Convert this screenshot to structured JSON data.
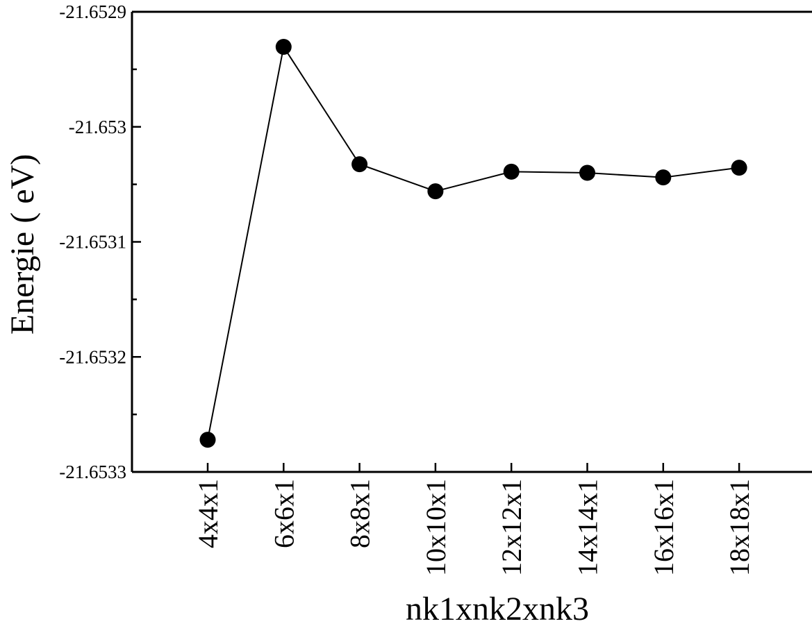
{
  "chart_data": {
    "type": "line",
    "title": "",
    "xlabel": "nk1xnk2xnk3",
    "ylabel": "Energie ( eV)",
    "categories": [
      "4x4x1",
      "6x6x1",
      "8x8x1",
      "10x10x1",
      "12x12x1",
      "14x14x1",
      "16x16x1",
      "18x18x1"
    ],
    "series": [
      {
        "values": [
          -21.653272,
          -21.6529305,
          -21.6530325,
          -21.653056,
          -21.653039,
          -21.65304,
          -21.653044,
          -21.6530355
        ]
      }
    ],
    "ylim": [
      -21.6533,
      -21.6529
    ],
    "yticks": [
      -21.6533,
      -21.6532,
      -21.6531,
      -21.653,
      -21.6529
    ],
    "ytick_labels": [
      "-21.6533",
      "-21.6532",
      "-21.6531",
      "-21.653",
      "-21.6529"
    ],
    "grid": false,
    "legend": "none",
    "marker": "filled-circle",
    "colors": {
      "line": "#000000",
      "marker": "#000000",
      "axis": "#000000",
      "background": "#ffffff"
    }
  }
}
